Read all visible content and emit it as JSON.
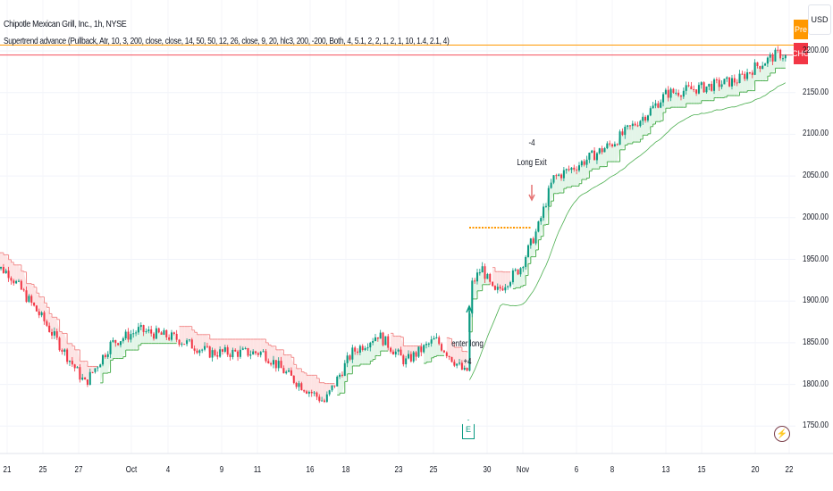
{
  "header": {
    "title": "Chipotle Mexican Grill, Inc., 1h, NYSE",
    "indicator": "Supertrend advance (Pullback, Atr, 10, 3, 200, close, close, 14, 50, 50, 12, 26, close, 9, 20, hlc3, 200, -200, Both, 4, 5.1, 2, 2, 1, 2, 1, 10, 1.4, 2.1, 4)"
  },
  "price_scale": {
    "currency": "USD",
    "labels": [
      "2200.00",
      "2150.00",
      "2100.00",
      "2050.00",
      "2000.00",
      "1950.00",
      "1900.00",
      "1850.00",
      "1800.00",
      "1750.00"
    ],
    "pre_badge": "Pre",
    "chg_badge": "CHG"
  },
  "time_scale": {
    "labels": [
      "21",
      "25",
      "27",
      "Oct",
      "4",
      "9",
      "11",
      "16",
      "18",
      "23",
      "25",
      "30",
      "Nov",
      "6",
      "8",
      "13",
      "15",
      "20",
      "22"
    ]
  },
  "annotations": {
    "long_exit_qty": "-4",
    "long_exit": "Long Exit",
    "enter_long": "enter long",
    "enter_long_qty": "+4"
  },
  "icons": {
    "earnings": "E",
    "events": "lightning-icon"
  },
  "colors": {
    "up": "#089981",
    "down": "#f23645",
    "pre_line": "#ff9800",
    "chg_line": "#f23645",
    "up_fill": "#e3f5e8",
    "down_fill": "#fde3e3",
    "supertrend_up": "#4caf50",
    "supertrend_down": "#f28b8b"
  },
  "chart_data": {
    "type": "candlestick",
    "ylim": [
      1740,
      2215
    ],
    "price_path": [
      [
        "Sep 20 10:00",
        1945
      ],
      [
        "Sep 21 10:00",
        1934
      ],
      [
        "Sep 25 10:00",
        1876
      ],
      [
        "Sep 27 12:00",
        1801
      ],
      [
        "Sep 28 15:00",
        1849
      ],
      [
        "Oct 2 12:00",
        1865
      ],
      [
        "Oct 4 12:00",
        1856
      ],
      [
        "Oct 6 12:00",
        1838
      ],
      [
        "Oct 11 12:00",
        1838
      ],
      [
        "Oct 13 10:00",
        1806
      ],
      [
        "Oct 16 15:00",
        1779
      ],
      [
        "Oct 18 12:00",
        1838
      ],
      [
        "Oct 19 15:00",
        1860
      ],
      [
        "Oct 23 12:00",
        1827
      ],
      [
        "Oct 25 10:00",
        1854
      ],
      [
        "Oct 26 15:00",
        1811
      ],
      [
        "Oct 27 10:00",
        1918
      ],
      [
        "Oct 27 14:00",
        1940
      ],
      [
        "Oct 30 12:00",
        1908
      ],
      [
        "Oct 31 15:00",
        1940
      ],
      [
        "Nov 1 15:00",
        1988
      ],
      [
        "Nov 2 14:00",
        2047
      ],
      [
        "Nov 6 10:00",
        2063
      ],
      [
        "Nov 8 10:00",
        2090
      ],
      [
        "Nov 10 10:00",
        2127
      ],
      [
        "Nov 13 10:00",
        2149
      ],
      [
        "Nov 15 10:00",
        2156
      ],
      [
        "Nov 17 10:00",
        2165
      ],
      [
        "Nov 20 10:00",
        2181
      ],
      [
        "Nov 21 12:00",
        2197
      ],
      [
        "Nov 21 15:00",
        2192
      ]
    ],
    "pre_price": 2207,
    "last_price": 2195,
    "stop_level": 1988
  }
}
